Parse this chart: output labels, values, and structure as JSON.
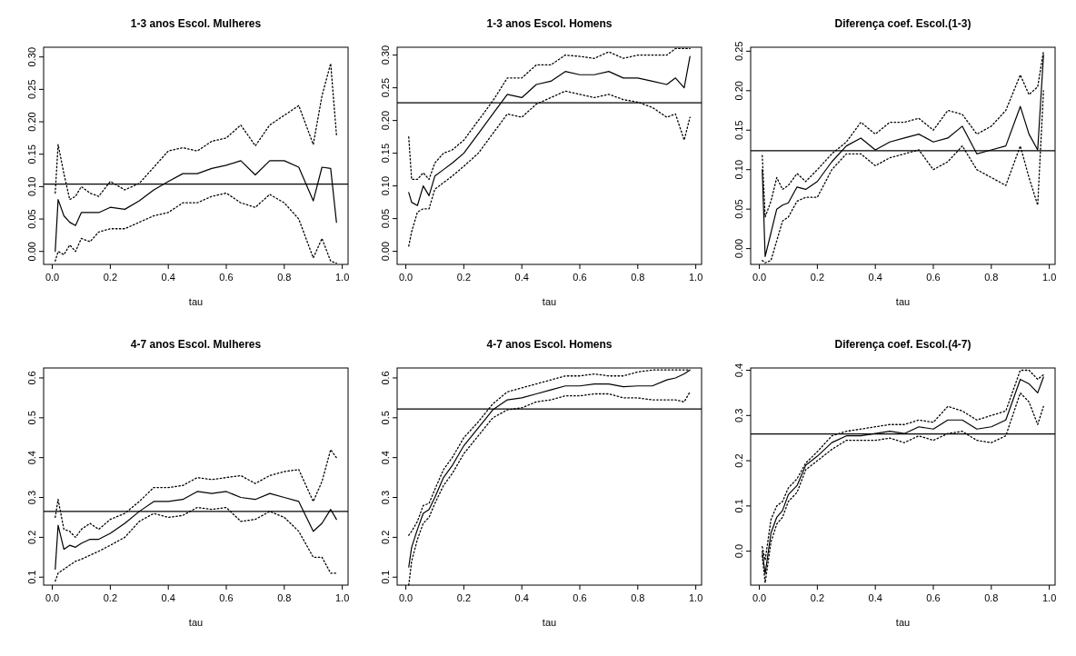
{
  "chart_data": [
    {
      "type": "line",
      "title": "1-3 anos Escol. Mulheres",
      "xlabel": "tau",
      "x": [
        0.01,
        0.02,
        0.04,
        0.06,
        0.08,
        0.1,
        0.13,
        0.16,
        0.2,
        0.25,
        0.3,
        0.35,
        0.4,
        0.45,
        0.5,
        0.55,
        0.6,
        0.65,
        0.7,
        0.75,
        0.8,
        0.85,
        0.9,
        0.93,
        0.96,
        0.98
      ],
      "xlim": [
        -0.03,
        1.02
      ],
      "xticks": [
        {
          "value": 0,
          "label": "0.0"
        },
        {
          "value": 0.2,
          "label": "0.2"
        },
        {
          "value": 0.4,
          "label": "0.4"
        },
        {
          "value": 0.6,
          "label": "0.6"
        },
        {
          "value": 0.8,
          "label": "0.8"
        },
        {
          "value": 1,
          "label": "1.0"
        }
      ],
      "ylim": [
        -0.02,
        0.315
      ],
      "yticks": [
        {
          "value": 0,
          "label": "0.00"
        },
        {
          "value": 0.05,
          "label": "0.05"
        },
        {
          "value": 0.1,
          "label": "0.10"
        },
        {
          "value": 0.15,
          "label": "0.15"
        },
        {
          "value": 0.2,
          "label": "0.20"
        },
        {
          "value": 0.25,
          "label": "0.25"
        },
        {
          "value": 0.3,
          "label": "0.30"
        }
      ],
      "ref_lines": [
        {
          "axis": "y",
          "value": 0.104,
          "color": "#000000",
          "line_style": "solid"
        }
      ],
      "series": [
        {
          "color": "#000000",
          "line_style": "solid",
          "values": [
            0.0,
            0.08,
            0.055,
            0.045,
            0.04,
            0.06,
            0.06,
            0.06,
            0.068,
            0.065,
            0.078,
            0.095,
            0.108,
            0.12,
            0.12,
            0.128,
            0.133,
            0.14,
            0.118,
            0.14,
            0.14,
            0.13,
            0.078,
            0.13,
            0.128,
            0.045
          ]
        },
        {
          "color": "#000000",
          "line_style": "dotted",
          "values": [
            0.09,
            0.165,
            0.12,
            0.08,
            0.085,
            0.1,
            0.09,
            0.085,
            0.108,
            0.095,
            0.105,
            0.13,
            0.155,
            0.16,
            0.155,
            0.17,
            0.175,
            0.195,
            0.163,
            0.195,
            0.21,
            0.225,
            0.165,
            0.24,
            0.29,
            0.18
          ]
        },
        {
          "color": "#000000",
          "line_style": "dotted",
          "values": [
            -0.015,
            0.0,
            -0.005,
            0.01,
            0.0,
            0.02,
            0.015,
            0.03,
            0.035,
            0.035,
            0.045,
            0.055,
            0.06,
            0.075,
            0.075,
            0.085,
            0.09,
            0.075,
            0.068,
            0.088,
            0.075,
            0.05,
            -0.01,
            0.02,
            -0.015,
            -0.018
          ]
        }
      ]
    },
    {
      "type": "line",
      "title": "1-3 anos Escol. Homens",
      "xlabel": "tau",
      "x": [
        0.01,
        0.02,
        0.04,
        0.06,
        0.08,
        0.1,
        0.13,
        0.16,
        0.2,
        0.25,
        0.3,
        0.35,
        0.4,
        0.45,
        0.5,
        0.55,
        0.6,
        0.65,
        0.7,
        0.75,
        0.8,
        0.85,
        0.9,
        0.93,
        0.96,
        0.98
      ],
      "xlim": [
        -0.03,
        1.02
      ],
      "xticks": [
        {
          "value": 0,
          "label": "0.0"
        },
        {
          "value": 0.2,
          "label": "0.2"
        },
        {
          "value": 0.4,
          "label": "0.4"
        },
        {
          "value": 0.6,
          "label": "0.6"
        },
        {
          "value": 0.8,
          "label": "0.8"
        },
        {
          "value": 1,
          "label": "1.0"
        }
      ],
      "ylim": [
        -0.02,
        0.312
      ],
      "yticks": [
        {
          "value": 0,
          "label": "0.00"
        },
        {
          "value": 0.05,
          "label": "0.05"
        },
        {
          "value": 0.1,
          "label": "0.10"
        },
        {
          "value": 0.15,
          "label": "0.15"
        },
        {
          "value": 0.2,
          "label": "0.20"
        },
        {
          "value": 0.25,
          "label": "0.25"
        },
        {
          "value": 0.3,
          "label": "0.30"
        }
      ],
      "ref_lines": [
        {
          "axis": "y",
          "value": 0.227,
          "color": "#000000",
          "line_style": "solid"
        }
      ],
      "series": [
        {
          "color": "#000000",
          "line_style": "solid",
          "values": [
            0.09,
            0.075,
            0.07,
            0.1,
            0.085,
            0.115,
            0.125,
            0.135,
            0.15,
            0.18,
            0.21,
            0.24,
            0.235,
            0.255,
            0.26,
            0.275,
            0.27,
            0.27,
            0.275,
            0.265,
            0.265,
            0.26,
            0.255,
            0.265,
            0.25,
            0.298
          ]
        },
        {
          "color": "#000000",
          "line_style": "dotted",
          "values": [
            0.175,
            0.11,
            0.11,
            0.12,
            0.11,
            0.135,
            0.15,
            0.155,
            0.17,
            0.2,
            0.23,
            0.265,
            0.265,
            0.285,
            0.285,
            0.3,
            0.298,
            0.295,
            0.305,
            0.295,
            0.3,
            0.3,
            0.3,
            0.31,
            0.31,
            0.31
          ]
        },
        {
          "color": "#000000",
          "line_style": "dotted",
          "values": [
            0.008,
            0.03,
            0.06,
            0.065,
            0.065,
            0.095,
            0.105,
            0.115,
            0.13,
            0.15,
            0.18,
            0.21,
            0.205,
            0.225,
            0.235,
            0.245,
            0.24,
            0.235,
            0.24,
            0.232,
            0.228,
            0.22,
            0.205,
            0.21,
            0.17,
            0.205
          ]
        }
      ]
    },
    {
      "type": "line",
      "title": "Diferença coef. Escol.(1-3)",
      "xlabel": "tau",
      "x": [
        0.01,
        0.02,
        0.04,
        0.06,
        0.08,
        0.1,
        0.13,
        0.16,
        0.2,
        0.25,
        0.3,
        0.35,
        0.4,
        0.45,
        0.5,
        0.55,
        0.6,
        0.65,
        0.7,
        0.75,
        0.8,
        0.85,
        0.9,
        0.93,
        0.96,
        0.98
      ],
      "xlim": [
        -0.03,
        1.02
      ],
      "xticks": [
        {
          "value": 0,
          "label": "0.0"
        },
        {
          "value": 0.2,
          "label": "0.2"
        },
        {
          "value": 0.4,
          "label": "0.4"
        },
        {
          "value": 0.6,
          "label": "0.6"
        },
        {
          "value": 0.8,
          "label": "0.8"
        },
        {
          "value": 1,
          "label": "1.0"
        }
      ],
      "ylim": [
        -0.02,
        0.255
      ],
      "yticks": [
        {
          "value": 0,
          "label": "0.00"
        },
        {
          "value": 0.05,
          "label": "0.05"
        },
        {
          "value": 0.1,
          "label": "0.10"
        },
        {
          "value": 0.15,
          "label": "0.15"
        },
        {
          "value": 0.2,
          "label": "0.20"
        },
        {
          "value": 0.25,
          "label": "0.25"
        }
      ],
      "ref_lines": [
        {
          "axis": "y",
          "value": 0.124,
          "color": "#000000",
          "line_style": "solid"
        }
      ],
      "series": [
        {
          "color": "#000000",
          "line_style": "solid",
          "values": [
            0.1,
            -0.01,
            0.02,
            0.05,
            0.055,
            0.058,
            0.078,
            0.075,
            0.085,
            0.11,
            0.13,
            0.14,
            0.125,
            0.135,
            0.14,
            0.145,
            0.135,
            0.14,
            0.155,
            0.12,
            0.125,
            0.13,
            0.18,
            0.145,
            0.125,
            0.245
          ]
        },
        {
          "color": "#000000",
          "line_style": "dotted",
          "values": [
            0.118,
            0.04,
            0.06,
            0.09,
            0.075,
            0.08,
            0.095,
            0.085,
            0.1,
            0.12,
            0.135,
            0.16,
            0.145,
            0.16,
            0.16,
            0.165,
            0.15,
            0.175,
            0.17,
            0.145,
            0.155,
            0.175,
            0.22,
            0.195,
            0.205,
            0.25
          ]
        },
        {
          "color": "#000000",
          "line_style": "dotted",
          "values": [
            -0.015,
            -0.018,
            -0.015,
            0.01,
            0.035,
            0.04,
            0.06,
            0.065,
            0.065,
            0.1,
            0.12,
            0.12,
            0.105,
            0.115,
            0.12,
            0.125,
            0.1,
            0.11,
            0.13,
            0.1,
            0.09,
            0.08,
            0.13,
            0.09,
            0.055,
            0.2
          ]
        }
      ]
    },
    {
      "type": "line",
      "title": "4-7 anos Escol. Mulheres",
      "xlabel": "tau",
      "x": [
        0.01,
        0.02,
        0.04,
        0.06,
        0.08,
        0.1,
        0.13,
        0.16,
        0.2,
        0.25,
        0.3,
        0.35,
        0.4,
        0.45,
        0.5,
        0.55,
        0.6,
        0.65,
        0.7,
        0.75,
        0.8,
        0.85,
        0.9,
        0.93,
        0.96,
        0.98
      ],
      "xlim": [
        -0.03,
        1.02
      ],
      "xticks": [
        {
          "value": 0,
          "label": "0.0"
        },
        {
          "value": 0.2,
          "label": "0.2"
        },
        {
          "value": 0.4,
          "label": "0.4"
        },
        {
          "value": 0.6,
          "label": "0.6"
        },
        {
          "value": 0.8,
          "label": "0.8"
        },
        {
          "value": 1,
          "label": "1.0"
        }
      ],
      "ylim": [
        0.08,
        0.625
      ],
      "yticks": [
        0.1,
        0.2,
        0.3,
        0.4,
        0.5,
        0.6
      ],
      "ref_lines": [
        {
          "axis": "y",
          "value": 0.265,
          "color": "#000000",
          "line_style": "solid"
        }
      ],
      "series": [
        {
          "color": "#000000",
          "line_style": "solid",
          "values": [
            0.12,
            0.23,
            0.17,
            0.18,
            0.175,
            0.185,
            0.195,
            0.195,
            0.21,
            0.235,
            0.265,
            0.29,
            0.29,
            0.295,
            0.315,
            0.31,
            0.315,
            0.3,
            0.295,
            0.31,
            0.3,
            0.29,
            0.215,
            0.235,
            0.27,
            0.245
          ]
        },
        {
          "color": "#000000",
          "line_style": "dotted",
          "values": [
            0.25,
            0.295,
            0.22,
            0.215,
            0.2,
            0.22,
            0.235,
            0.22,
            0.245,
            0.26,
            0.29,
            0.325,
            0.325,
            0.33,
            0.35,
            0.345,
            0.35,
            0.355,
            0.335,
            0.355,
            0.365,
            0.37,
            0.29,
            0.34,
            0.42,
            0.4
          ]
        },
        {
          "color": "#000000",
          "line_style": "dotted",
          "values": [
            0.09,
            0.11,
            0.12,
            0.13,
            0.14,
            0.145,
            0.155,
            0.165,
            0.18,
            0.2,
            0.24,
            0.26,
            0.25,
            0.255,
            0.275,
            0.27,
            0.275,
            0.24,
            0.245,
            0.265,
            0.25,
            0.215,
            0.15,
            0.15,
            0.11,
            0.11
          ]
        }
      ]
    },
    {
      "type": "line",
      "title": "4-7 anos Escol. Homens",
      "xlabel": "tau",
      "x": [
        0.01,
        0.02,
        0.04,
        0.06,
        0.08,
        0.1,
        0.13,
        0.16,
        0.2,
        0.25,
        0.3,
        0.35,
        0.4,
        0.45,
        0.5,
        0.55,
        0.6,
        0.65,
        0.7,
        0.75,
        0.8,
        0.85,
        0.9,
        0.93,
        0.96,
        0.98
      ],
      "xlim": [
        -0.03,
        1.02
      ],
      "xticks": [
        {
          "value": 0,
          "label": "0.0"
        },
        {
          "value": 0.2,
          "label": "0.2"
        },
        {
          "value": 0.4,
          "label": "0.4"
        },
        {
          "value": 0.6,
          "label": "0.6"
        },
        {
          "value": 0.8,
          "label": "0.8"
        },
        {
          "value": 1,
          "label": "1.0"
        }
      ],
      "ylim": [
        0.08,
        0.625
      ],
      "yticks": [
        0.1,
        0.2,
        0.3,
        0.4,
        0.5,
        0.6
      ],
      "ref_lines": [
        {
          "axis": "y",
          "value": 0.522,
          "color": "#000000",
          "line_style": "solid"
        }
      ],
      "series": [
        {
          "color": "#000000",
          "line_style": "solid",
          "values": [
            0.125,
            0.175,
            0.22,
            0.26,
            0.27,
            0.3,
            0.35,
            0.38,
            0.43,
            0.475,
            0.52,
            0.545,
            0.55,
            0.56,
            0.57,
            0.58,
            0.58,
            0.585,
            0.585,
            0.578,
            0.58,
            0.58,
            0.595,
            0.6,
            0.61,
            0.62
          ]
        },
        {
          "color": "#000000",
          "line_style": "dotted",
          "values": [
            0.205,
            0.215,
            0.24,
            0.28,
            0.285,
            0.32,
            0.37,
            0.4,
            0.45,
            0.49,
            0.535,
            0.565,
            0.575,
            0.585,
            0.595,
            0.605,
            0.605,
            0.61,
            0.605,
            0.605,
            0.615,
            0.62,
            0.62,
            0.62,
            0.62,
            0.62
          ]
        },
        {
          "color": "#000000",
          "line_style": "dotted",
          "values": [
            0.08,
            0.14,
            0.195,
            0.235,
            0.25,
            0.285,
            0.33,
            0.36,
            0.41,
            0.455,
            0.5,
            0.52,
            0.525,
            0.54,
            0.545,
            0.555,
            0.555,
            0.56,
            0.56,
            0.55,
            0.55,
            0.545,
            0.545,
            0.545,
            0.54,
            0.565
          ]
        }
      ]
    },
    {
      "type": "line",
      "title": "Diferença coef. Escol.(4-7)",
      "xlabel": "tau",
      "x": [
        0.01,
        0.02,
        0.04,
        0.06,
        0.08,
        0.1,
        0.13,
        0.16,
        0.2,
        0.25,
        0.3,
        0.35,
        0.4,
        0.45,
        0.5,
        0.55,
        0.6,
        0.65,
        0.7,
        0.75,
        0.8,
        0.85,
        0.9,
        0.93,
        0.96,
        0.98
      ],
      "xlim": [
        -0.03,
        1.02
      ],
      "xticks": [
        {
          "value": 0,
          "label": "0.0"
        },
        {
          "value": 0.2,
          "label": "0.2"
        },
        {
          "value": 0.4,
          "label": "0.4"
        },
        {
          "value": 0.6,
          "label": "0.6"
        },
        {
          "value": 0.8,
          "label": "0.8"
        },
        {
          "value": 1,
          "label": "1.0"
        }
      ],
      "ylim": [
        -0.075,
        0.405
      ],
      "yticks": [
        {
          "value": 0,
          "label": "0.0"
        },
        {
          "value": 0.1,
          "label": "0.1"
        },
        {
          "value": 0.2,
          "label": "0.2"
        },
        {
          "value": 0.3,
          "label": "0.3"
        },
        {
          "value": 0.4,
          "label": "0.4"
        }
      ],
      "ref_lines": [
        {
          "axis": "y",
          "value": 0.259,
          "color": "#000000",
          "line_style": "solid"
        }
      ],
      "series": [
        {
          "color": "#000000",
          "line_style": "solid",
          "values": [
            0.0,
            -0.05,
            0.04,
            0.075,
            0.09,
            0.125,
            0.145,
            0.19,
            0.21,
            0.24,
            0.255,
            0.255,
            0.26,
            0.265,
            0.26,
            0.275,
            0.27,
            0.29,
            0.29,
            0.27,
            0.275,
            0.29,
            0.38,
            0.37,
            0.35,
            0.385
          ]
        },
        {
          "color": "#000000",
          "line_style": "dotted",
          "values": [
            0.01,
            -0.02,
            0.07,
            0.1,
            0.11,
            0.14,
            0.16,
            0.195,
            0.22,
            0.255,
            0.265,
            0.27,
            0.275,
            0.28,
            0.28,
            0.29,
            0.285,
            0.32,
            0.31,
            0.29,
            0.3,
            0.31,
            0.4,
            0.4,
            0.38,
            0.39
          ]
        },
        {
          "color": "#000000",
          "line_style": "dotted",
          "values": [
            -0.01,
            -0.07,
            0.02,
            0.06,
            0.075,
            0.11,
            0.13,
            0.18,
            0.2,
            0.225,
            0.245,
            0.245,
            0.245,
            0.25,
            0.24,
            0.255,
            0.245,
            0.26,
            0.265,
            0.245,
            0.24,
            0.255,
            0.35,
            0.33,
            0.28,
            0.32
          ]
        }
      ]
    }
  ]
}
